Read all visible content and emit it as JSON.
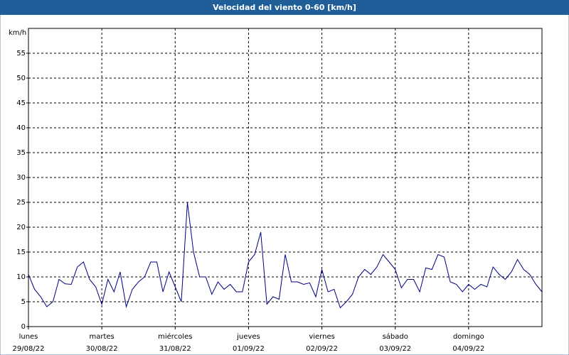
{
  "chart_data": {
    "type": "line",
    "title": "Velocidad del viento 0-60 [km/h]",
    "y_unit": "km/h",
    "x": [
      0,
      2,
      4,
      6,
      8,
      10,
      12,
      14,
      16,
      18,
      20,
      22,
      24,
      26,
      28,
      30,
      32,
      34,
      36,
      38,
      40,
      42,
      44,
      46,
      48,
      50,
      52,
      54,
      56,
      58,
      60,
      62,
      64,
      66,
      68,
      70,
      72,
      74,
      76,
      78,
      80,
      82,
      84,
      86,
      88,
      90,
      92,
      94,
      96,
      98,
      100,
      102,
      104,
      106,
      108,
      110,
      112,
      114,
      116,
      118,
      120,
      122,
      124,
      126,
      128,
      130,
      132,
      134,
      136,
      138,
      140,
      142,
      144,
      146,
      148,
      150,
      152,
      154,
      156,
      158,
      160,
      162,
      164,
      166,
      168
    ],
    "series": [
      {
        "name": "Velocidad del viento",
        "color": "#000080",
        "values": [
          10.5,
          7.5,
          6,
          4,
          5,
          9.5,
          8.6,
          8.5,
          12,
          13,
          9.5,
          8,
          4.5,
          9.5,
          7,
          11,
          4,
          7.5,
          9,
          10,
          13,
          13,
          7,
          11,
          8,
          5,
          25,
          15,
          10,
          10,
          6.5,
          9,
          7.5,
          8.5,
          7,
          7,
          13,
          14.5,
          19,
          4.5,
          6,
          5.5,
          14.5,
          9,
          9,
          8.5,
          8.8,
          6,
          11.5,
          7,
          7.5,
          3.8,
          5,
          6.5,
          10,
          11.5,
          10.5,
          12,
          14.5,
          13,
          11.5,
          7.8,
          9.5,
          9.5,
          7,
          11.8,
          11.5,
          14.5,
          14,
          9,
          8.5,
          7,
          8.5,
          7.5,
          8.5,
          8,
          12,
          10.5,
          9.5,
          11,
          13.5,
          11.5,
          10.5,
          8.5,
          7
        ]
      }
    ],
    "xlim": [
      0,
      168
    ],
    "xticks": [
      {
        "value": 0,
        "label": "lunes"
      },
      {
        "value": 24,
        "label": "martes"
      },
      {
        "value": 48,
        "label": "miércoles"
      },
      {
        "value": 72,
        "label": "jueves"
      },
      {
        "value": 96,
        "label": "viernes"
      },
      {
        "value": 120,
        "label": "sábado"
      },
      {
        "value": 144,
        "label": "domingo"
      }
    ],
    "xtick_dates": [
      "29/08/22",
      "30/08/22",
      "31/08/22",
      "01/09/22",
      "02/09/22",
      "03/09/22",
      "04/09/22"
    ],
    "ylim": [
      0,
      60
    ],
    "yticks": [
      0,
      5,
      10,
      15,
      20,
      25,
      30,
      35,
      40,
      45,
      50,
      55
    ],
    "grid": true
  }
}
